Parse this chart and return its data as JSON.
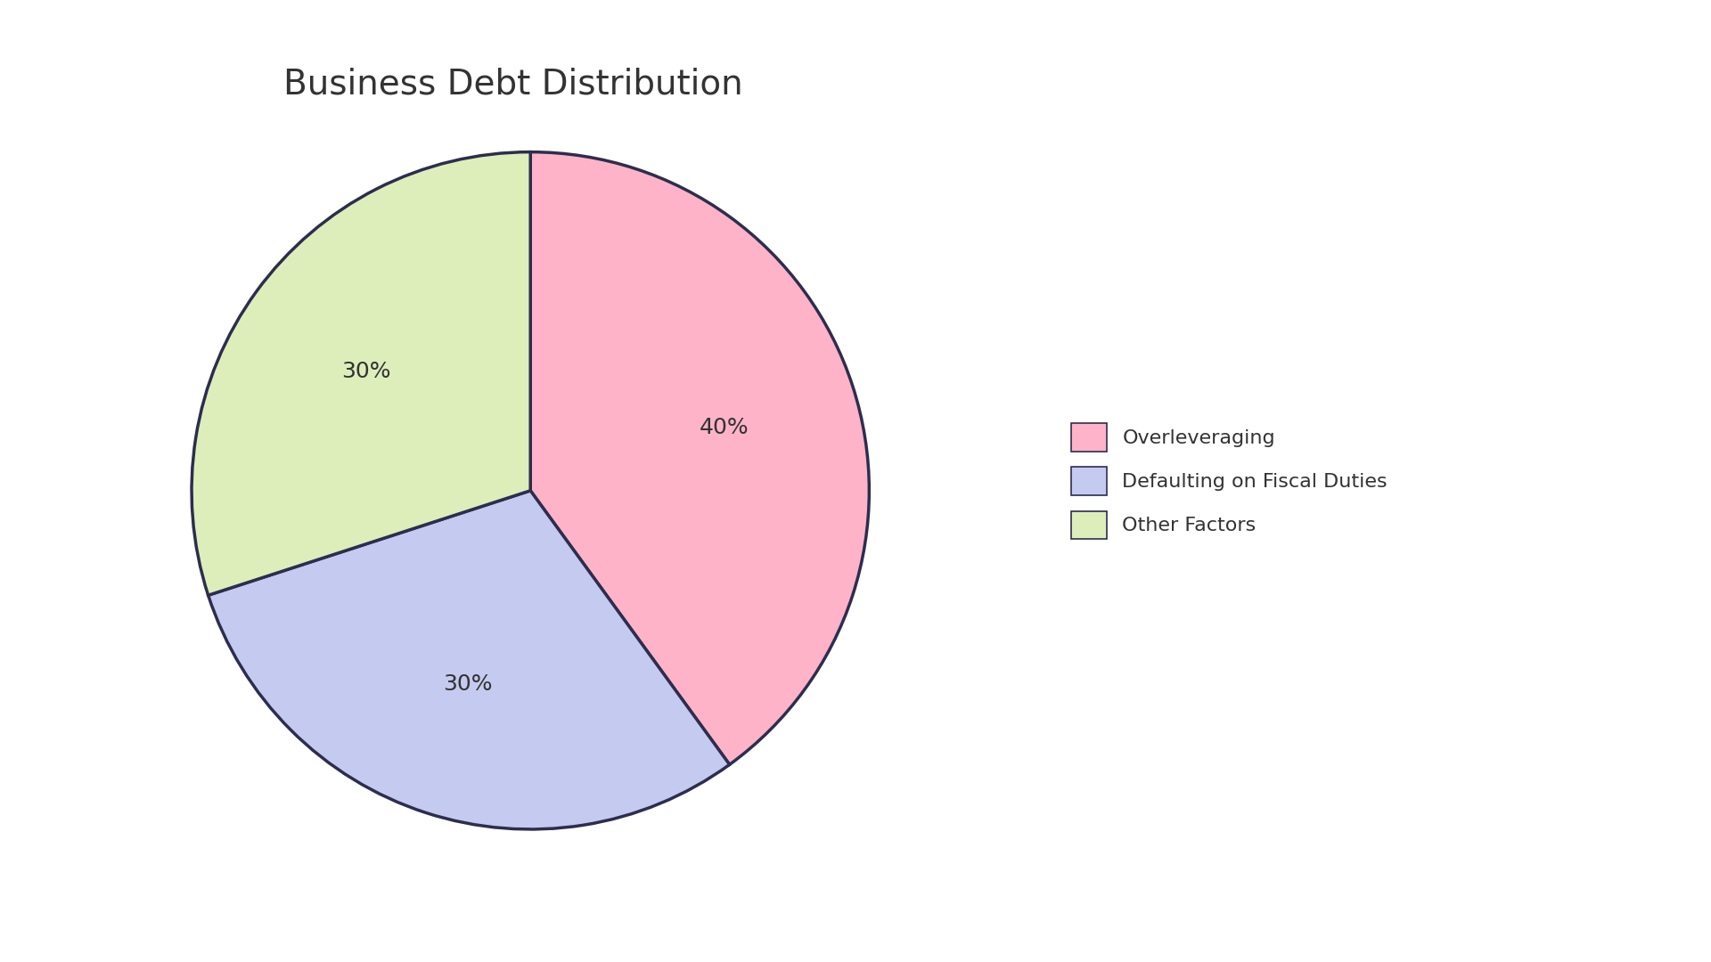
{
  "title": "Business Debt Distribution",
  "slices": [
    {
      "label": "Overleveraging",
      "value": 40,
      "color": "#FFB3C8",
      "text_color": "#333333"
    },
    {
      "label": "Defaulting on Fiscal Duties",
      "value": 30,
      "color": "#C5CAF0",
      "text_color": "#333333"
    },
    {
      "label": "Other Factors",
      "value": 30,
      "color": "#DDEEBB",
      "text_color": "#333333"
    }
  ],
  "background_color": "#FFFFFF",
  "edge_color": "#2D2D4E",
  "edge_width": 2.5,
  "title_fontsize": 28,
  "label_fontsize": 18,
  "legend_fontsize": 16,
  "startangle": 90,
  "pctdistance": 0.6
}
